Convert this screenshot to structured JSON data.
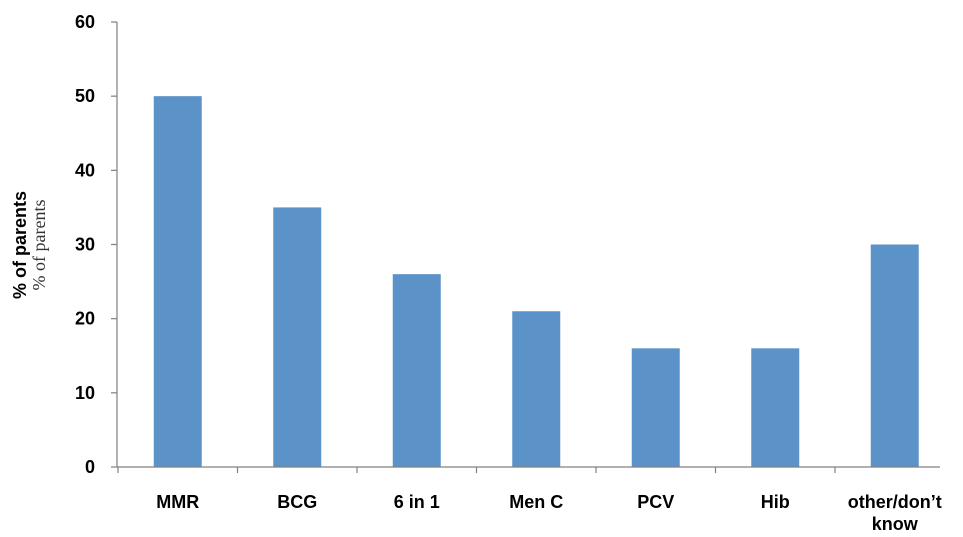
{
  "chart_data": {
    "type": "bar",
    "categories": [
      "MMR",
      "BCG",
      "6 in 1",
      "Men C",
      "PCV",
      "Hib",
      "other/don’t know"
    ],
    "values": [
      50,
      35,
      26,
      21,
      16,
      16,
      30
    ],
    "ylabel": "% of parents",
    "ylabel_overlay": "% of parents",
    "ylim": [
      0,
      60
    ],
    "yticks": [
      0,
      10,
      20,
      30,
      40,
      50,
      60
    ],
    "grid": false,
    "bar_color": "#5b93c9",
    "axis_color": "#808080"
  }
}
